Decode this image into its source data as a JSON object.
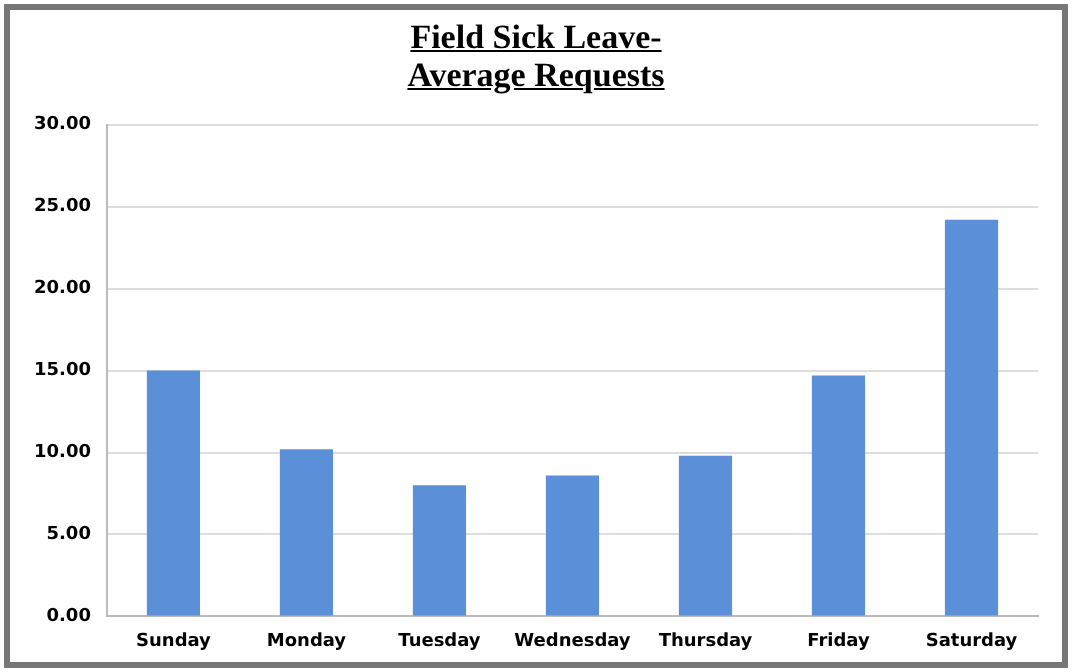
{
  "chart_data": {
    "type": "bar",
    "title": "Field Sick Leave-\nAverage Requests",
    "categories": [
      "Sunday",
      "Monday",
      "Tuesday",
      "Wednesday",
      "Thursday",
      "Friday",
      "Saturday"
    ],
    "values": [
      15.0,
      10.2,
      8.0,
      8.6,
      9.8,
      14.7,
      24.2
    ],
    "color": "#5b8fd8",
    "ylim": [
      0,
      30
    ],
    "yticks": [
      {
        "value": 0,
        "label": "0.00"
      },
      {
        "value": 5,
        "label": "5.00"
      },
      {
        "value": 10,
        "label": "10.00"
      },
      {
        "value": 15,
        "label": "15.00"
      },
      {
        "value": 20,
        "label": "20.00"
      },
      {
        "value": 25,
        "label": "25.00"
      },
      {
        "value": 30,
        "label": "30.00"
      }
    ],
    "grid": "y",
    "legend": false
  }
}
